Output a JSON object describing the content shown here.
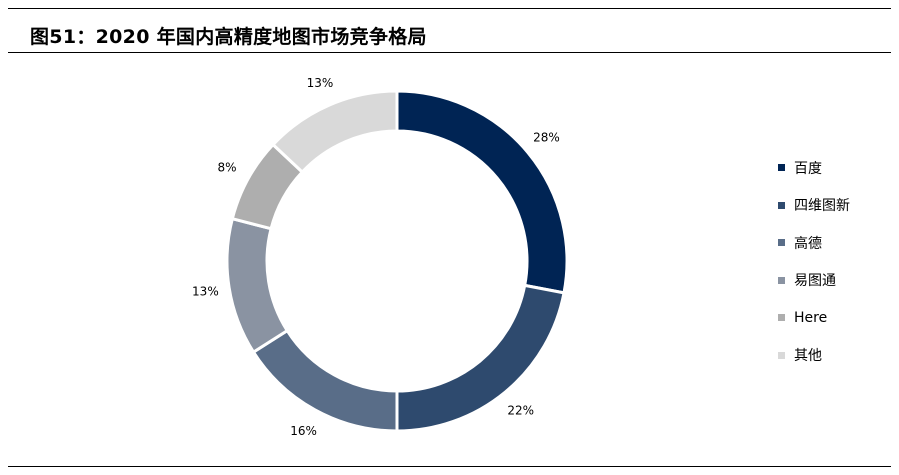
{
  "figure": {
    "title": "图51：2020 年国内高精度地图市场竞争格局"
  },
  "chart_data": {
    "type": "pie",
    "donut": true,
    "title": "图51：2020 年国内高精度地图市场竞争格局",
    "categories": [
      "百度",
      "四维图新",
      "高德",
      "易图通",
      "Here",
      "其他"
    ],
    "values": [
      28,
      22,
      16,
      13,
      8,
      13
    ],
    "labels": [
      "28%",
      "22%",
      "16%",
      "13%",
      "8%",
      "13%"
    ],
    "colors": [
      "#002454",
      "#2e4a6e",
      "#596d88",
      "#8a93a2",
      "#aeaeae",
      "#d9d9d9"
    ],
    "legend_position": "right"
  }
}
